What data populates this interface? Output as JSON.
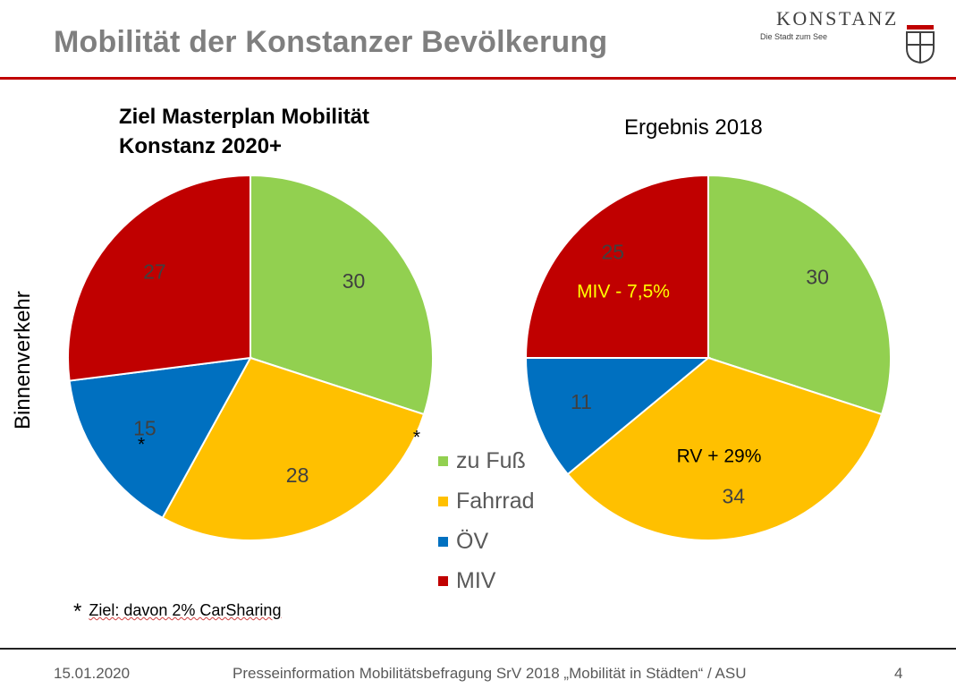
{
  "header": {
    "title": "Mobilität der Konstanzer Bevölkerung",
    "logo_name": "KONSTANZ",
    "logo_tagline": "Die Stadt zum See"
  },
  "y_axis_label": "Binnenverkehr",
  "chart_data": [
    {
      "type": "pie",
      "title": "Ziel Masterplan Mobilität Konstanz 2020+",
      "title_lines": [
        "Ziel Masterplan Mobilität",
        "Konstanz 2020+"
      ],
      "categories": [
        "zu Fuß",
        "Fahrrad",
        "ÖV",
        "MIV"
      ],
      "values": [
        30,
        28,
        15,
        27
      ],
      "labels": [
        "30",
        "28",
        "15",
        "27"
      ],
      "annotations": [
        "*",
        "*"
      ]
    },
    {
      "type": "pie",
      "title": "Ergebnis 2018",
      "categories": [
        "zu Fuß",
        "Fahrrad",
        "ÖV",
        "MIV"
      ],
      "values": [
        30,
        34,
        11,
        25
      ],
      "labels": [
        "30",
        "34",
        "11",
        "25"
      ],
      "annotations": [
        "MIV - 7,5%",
        "RV + 29%"
      ]
    }
  ],
  "legend": [
    {
      "label": "zu Fuß",
      "color": "#92d050"
    },
    {
      "label": "Fahrrad",
      "color": "#ffc000"
    },
    {
      "label": "ÖV",
      "color": "#0070c0"
    },
    {
      "label": "MIV",
      "color": "#c00000"
    }
  ],
  "footnote": {
    "star": "*",
    "text": "Ziel: davon 2% CarSharing"
  },
  "footer": {
    "date": "15.01.2020",
    "center": "Presseinformation Mobilitätsbefragung SrV 2018 „Mobilität in Städten“ / ASU",
    "page": "4"
  },
  "colors": {
    "accent_red": "#c00000",
    "title_gray": "#7f7f7f",
    "annotation_yellow": "#ffff00"
  }
}
